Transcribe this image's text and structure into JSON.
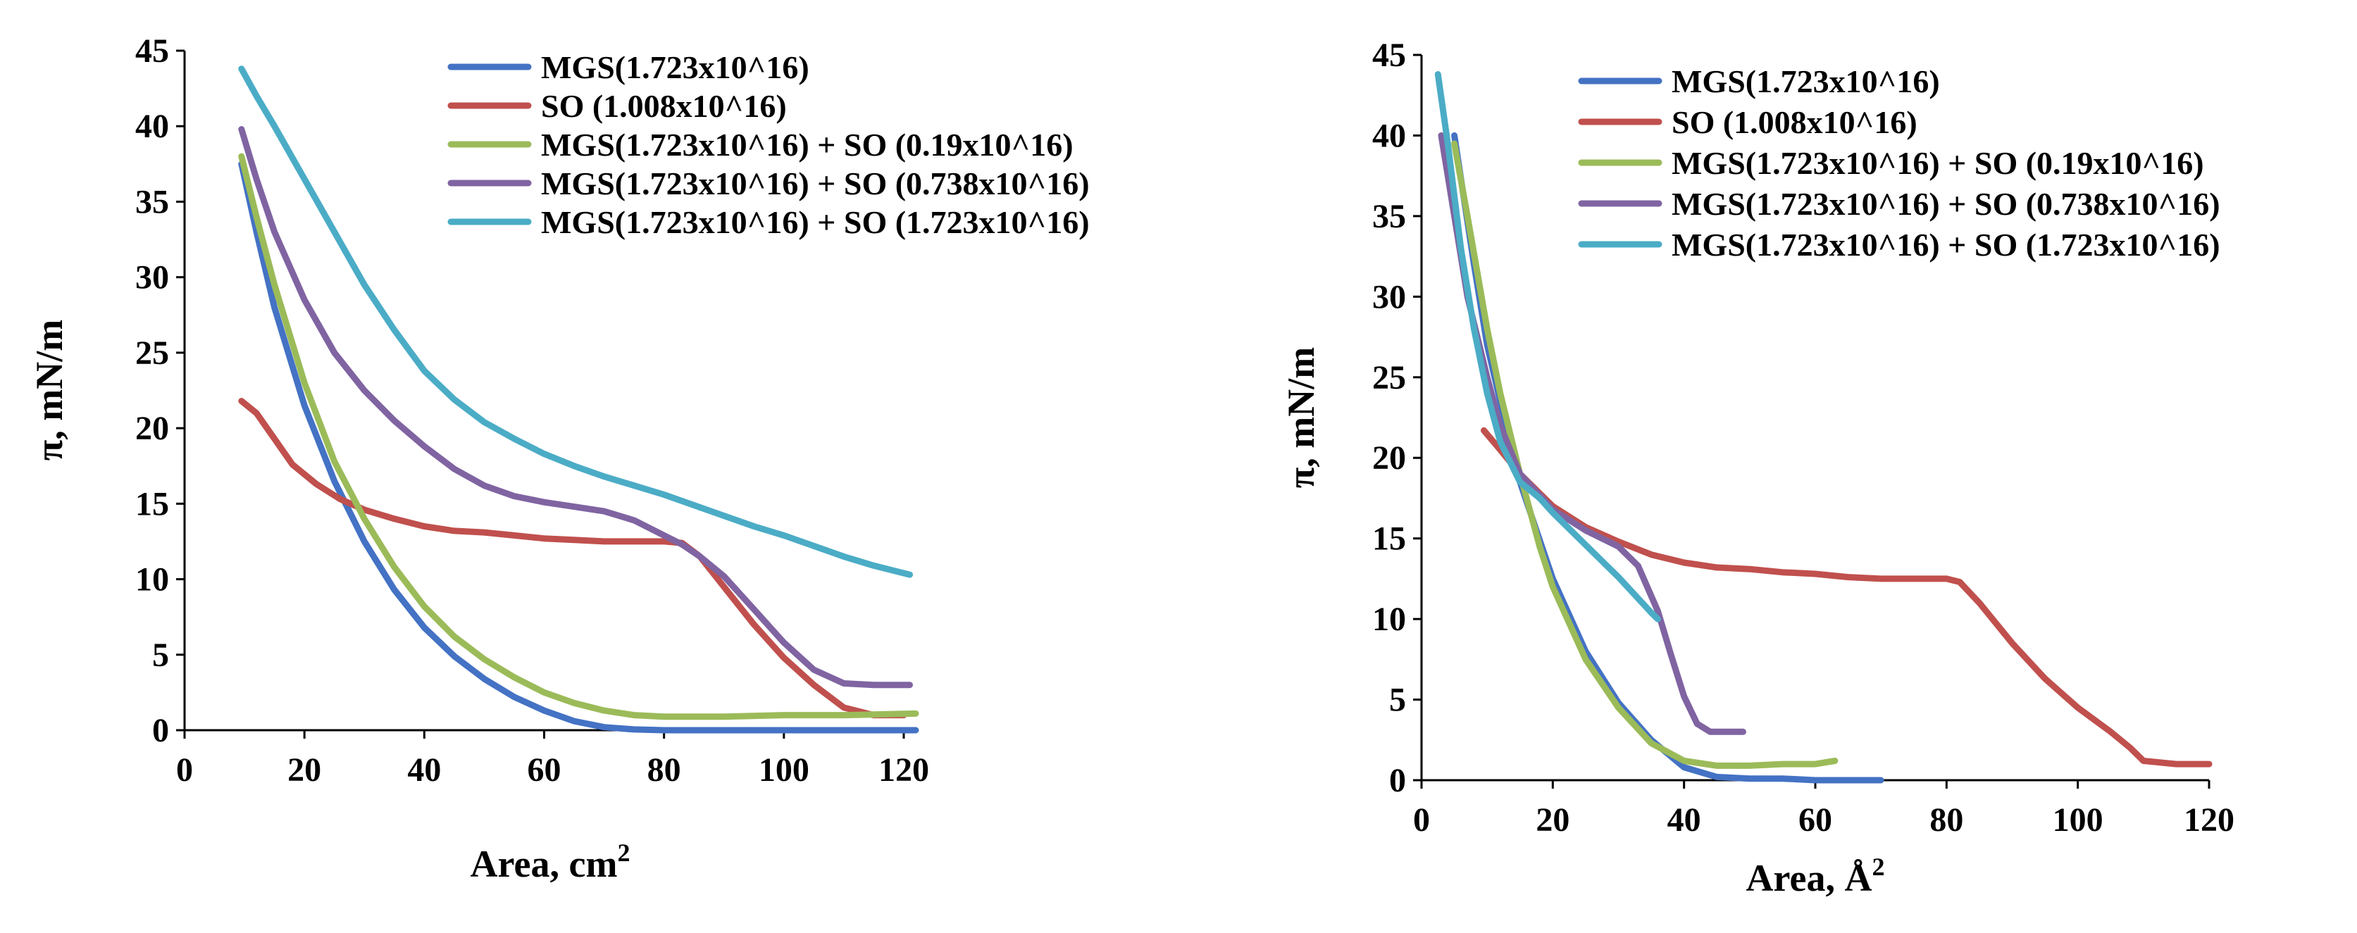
{
  "chart_data": [
    {
      "type": "line",
      "title": "",
      "xlabel": "Area, cm",
      "xlabel_sup": "2",
      "ylabel": "π, mN/m",
      "xlim": [
        0,
        122
      ],
      "ylim": [
        0,
        45
      ],
      "xticks": [
        "0",
        "20",
        "40",
        "60",
        "80",
        "100",
        "120"
      ],
      "yticks": [
        "0",
        "5",
        "10",
        "15",
        "20",
        "25",
        "30",
        "35",
        "40",
        "45"
      ],
      "legend_position": "top-right",
      "series": [
        {
          "name": "MGS(1.723x10^16)",
          "color": "#4472C4",
          "x": [
            9.5,
            12,
            15,
            20,
            25,
            30,
            35,
            40,
            45,
            50,
            55,
            60,
            65,
            70,
            75,
            80,
            90,
            100,
            110,
            122
          ],
          "y": [
            37.5,
            33,
            28,
            21.5,
            16.5,
            12.5,
            9.3,
            6.8,
            4.9,
            3.4,
            2.2,
            1.3,
            0.6,
            0.2,
            0.05,
            0,
            0,
            0,
            0,
            0
          ]
        },
        {
          "name": "SO (1.008x10^16)",
          "color": "#C0504D",
          "x": [
            9.5,
            12,
            15,
            18,
            22,
            26,
            30,
            35,
            40,
            45,
            50,
            55,
            60,
            65,
            70,
            75,
            80,
            83,
            86,
            90,
            95,
            100,
            105,
            110,
            115,
            120
          ],
          "y": [
            21.8,
            21,
            19.3,
            17.6,
            16.3,
            15.3,
            14.6,
            14,
            13.5,
            13.2,
            13.1,
            12.9,
            12.7,
            12.6,
            12.5,
            12.5,
            12.5,
            12.4,
            11.5,
            9.5,
            7,
            4.8,
            3,
            1.5,
            1.0,
            1.0
          ]
        },
        {
          "name": "MGS(1.723x10^16) + SO (0.19x10^16)",
          "color": "#9BBB59",
          "x": [
            9.5,
            12,
            15,
            20,
            25,
            30,
            35,
            40,
            45,
            50,
            55,
            60,
            65,
            70,
            75,
            80,
            90,
            100,
            110,
            122
          ],
          "y": [
            38,
            34,
            29.5,
            23,
            17.8,
            14,
            10.8,
            8.2,
            6.2,
            4.7,
            3.5,
            2.5,
            1.8,
            1.3,
            1.0,
            0.9,
            0.9,
            1.0,
            1.0,
            1.1
          ]
        },
        {
          "name": "MGS(1.723x10^16) + SO (0.738x10^16)",
          "color": "#8064A2",
          "x": [
            9.5,
            12,
            15,
            20,
            25,
            30,
            35,
            40,
            45,
            50,
            55,
            60,
            65,
            70,
            75,
            80,
            83,
            86,
            90,
            95,
            100,
            105,
            110,
            115,
            121
          ],
          "y": [
            39.8,
            36.5,
            33,
            28.5,
            25,
            22.5,
            20.5,
            18.8,
            17.3,
            16.2,
            15.5,
            15.1,
            14.8,
            14.5,
            13.9,
            12.9,
            12.3,
            11.5,
            10.2,
            8,
            5.8,
            4,
            3.1,
            3.0,
            3.0
          ]
        },
        {
          "name": "MGS(1.723x10^16) + SO (1.723x10^16)",
          "color": "#4BACC6",
          "x": [
            9.5,
            12,
            15,
            20,
            25,
            30,
            35,
            40,
            45,
            50,
            55,
            60,
            65,
            70,
            75,
            80,
            85,
            90,
            95,
            100,
            105,
            110,
            115,
            121
          ],
          "y": [
            43.8,
            42,
            40,
            36.5,
            33,
            29.5,
            26.5,
            23.8,
            21.9,
            20.4,
            19.3,
            18.3,
            17.5,
            16.8,
            16.2,
            15.6,
            14.9,
            14.2,
            13.5,
            12.9,
            12.2,
            11.5,
            10.9,
            10.3
          ]
        }
      ]
    },
    {
      "type": "line",
      "title": "",
      "xlabel": "Area, Å",
      "xlabel_sup": "2",
      "ylabel": "π, mN/m",
      "xlim": [
        0,
        120
      ],
      "ylim": [
        0,
        45
      ],
      "xticks": [
        "0",
        "20",
        "40",
        "60",
        "80",
        "100",
        "120"
      ],
      "yticks": [
        "0",
        "5",
        "10",
        "15",
        "20",
        "25",
        "30",
        "35",
        "40",
        "45"
      ],
      "legend_position": "top-right",
      "series": [
        {
          "name": "MGS(1.723x10^16)",
          "color": "#4472C4",
          "x": [
            5,
            8,
            10,
            12,
            15,
            20,
            25,
            30,
            35,
            40,
            45,
            50,
            55,
            60,
            65,
            70
          ],
          "y": [
            40,
            32,
            27,
            23.5,
            18.5,
            12.5,
            8,
            4.8,
            2.5,
            0.8,
            0.2,
            0.1,
            0.1,
            0,
            0,
            0
          ]
        },
        {
          "name": "SO (1.008x10^16)",
          "color": "#C0504D",
          "x": [
            9.5,
            12,
            15,
            20,
            25,
            30,
            35,
            40,
            45,
            50,
            55,
            60,
            65,
            70,
            75,
            80,
            82,
            85,
            90,
            95,
            100,
            105,
            108,
            110,
            115,
            120
          ],
          "y": [
            21.7,
            20.5,
            19,
            17,
            15.7,
            14.8,
            14,
            13.5,
            13.2,
            13.1,
            12.9,
            12.8,
            12.6,
            12.5,
            12.5,
            12.5,
            12.3,
            11,
            8.5,
            6.3,
            4.5,
            3,
            2,
            1.2,
            1.0,
            1.0
          ]
        },
        {
          "name": "MGS(1.723x10^16) + SO (0.19x10^16)",
          "color": "#9BBB59",
          "x": [
            5,
            7,
            10,
            12,
            15,
            18,
            20,
            25,
            30,
            35,
            40,
            45,
            50,
            55,
            60,
            63
          ],
          "y": [
            39.5,
            35,
            28,
            24,
            19,
            14.5,
            12,
            7.5,
            4.5,
            2.3,
            1.2,
            0.9,
            0.9,
            1.0,
            1.0,
            1.2
          ]
        },
        {
          "name": "MGS(1.723x10^16) + SO (0.738x10^16)",
          "color": "#8064A2",
          "x": [
            3,
            5,
            7,
            10,
            12,
            15,
            20,
            25,
            30,
            33,
            36,
            38,
            40,
            42,
            44,
            46,
            49
          ],
          "y": [
            40,
            35,
            30,
            25,
            22,
            19,
            16.8,
            15.5,
            14.5,
            13.3,
            10.5,
            7.8,
            5.2,
            3.5,
            3.0,
            3.0,
            3.0
          ]
        },
        {
          "name": "MGS(1.723x10^16) + SO (1.723x10^16)",
          "color": "#4BACC6",
          "x": [
            2.5,
            4,
            6,
            8,
            10,
            12,
            15,
            18,
            20,
            25,
            30,
            35,
            36
          ],
          "y": [
            43.8,
            39.5,
            33,
            28,
            24,
            21,
            18.5,
            17.5,
            16.6,
            14.6,
            12.6,
            10.4,
            10.0
          ]
        }
      ]
    }
  ]
}
